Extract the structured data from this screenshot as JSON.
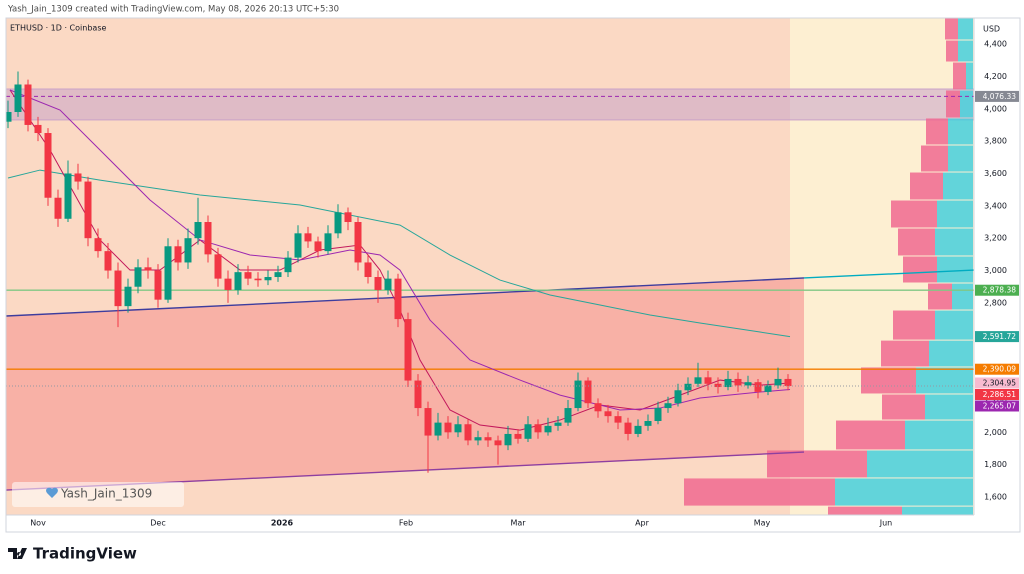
{
  "header": "Yash_Jain_1309 created with TradingView.com, May 08, 2026 20:13 UTC+5:30",
  "watermark": "Yash_Jain_1309",
  "footer_logo": "TradingView",
  "chart_data": {
    "type": "candlestick",
    "title": "ETHUSD · 1D · Coinbase",
    "y_axis_label": "USD",
    "up_color": "#089981",
    "down_color": "#f23645",
    "x": [
      0.5,
      3,
      5.5,
      8,
      10.5,
      13,
      15.5,
      18,
      20.5,
      23,
      25.5,
      28,
      30.5,
      33,
      35.5,
      38,
      40.5,
      43,
      45.5,
      48,
      50.5,
      53,
      55.5,
      58,
      60.5,
      63,
      65.5,
      68,
      70.5,
      73,
      75.5,
      78,
      80.5,
      83,
      85.5,
      88,
      90.5,
      93,
      95.5,
      98,
      100.5,
      103,
      105.5,
      108,
      110.5,
      113,
      115.5,
      118,
      120.5,
      123,
      125.5,
      128,
      130.5,
      133,
      135.5,
      138,
      140.5,
      143,
      145.5,
      148,
      150.5,
      153,
      155.5,
      158,
      160.5,
      163,
      165.5,
      168,
      170.5,
      173,
      175.5,
      178,
      180.5,
      183,
      185.5,
      188,
      190.5,
      193,
      195.5
    ],
    "ohlc": [
      [
        3920,
        4050,
        3880,
        3980
      ],
      [
        3980,
        4230,
        3950,
        4150
      ],
      [
        4150,
        4180,
        3860,
        3900
      ],
      [
        3900,
        3950,
        3800,
        3850
      ],
      [
        3850,
        3880,
        3400,
        3450
      ],
      [
        3450,
        3500,
        3270,
        3320
      ],
      [
        3320,
        3680,
        3300,
        3600
      ],
      [
        3600,
        3660,
        3500,
        3550
      ],
      [
        3550,
        3580,
        3150,
        3200
      ],
      [
        3200,
        3260,
        3080,
        3120
      ],
      [
        3120,
        3170,
        2950,
        3000
      ],
      [
        3000,
        3050,
        2650,
        2780
      ],
      [
        2780,
        2950,
        2740,
        2900
      ],
      [
        2900,
        3070,
        2860,
        3020
      ],
      [
        3020,
        3080,
        2950,
        3000
      ],
      [
        3000,
        3040,
        2770,
        2820
      ],
      [
        2820,
        3200,
        2800,
        3150
      ],
      [
        3150,
        3190,
        3000,
        3050
      ],
      [
        3050,
        3260,
        3010,
        3200
      ],
      [
        3200,
        3450,
        3160,
        3300
      ],
      [
        3300,
        3340,
        3050,
        3100
      ],
      [
        3100,
        3140,
        2900,
        2950
      ],
      [
        2950,
        3000,
        2800,
        2880
      ],
      [
        2880,
        3040,
        2850,
        2990
      ],
      [
        2990,
        3030,
        2910,
        2950
      ],
      [
        2950,
        2990,
        2900,
        2940
      ],
      [
        2940,
        3000,
        2910,
        2960
      ],
      [
        2960,
        3030,
        2930,
        2990
      ],
      [
        2990,
        3120,
        2960,
        3080
      ],
      [
        3080,
        3280,
        3050,
        3230
      ],
      [
        3230,
        3270,
        3140,
        3180
      ],
      [
        3180,
        3210,
        3080,
        3120
      ],
      [
        3120,
        3280,
        3100,
        3230
      ],
      [
        3230,
        3410,
        3200,
        3360
      ],
      [
        3360,
        3390,
        3250,
        3300
      ],
      [
        3300,
        3330,
        3000,
        3050
      ],
      [
        3050,
        3100,
        2920,
        2960
      ],
      [
        2960,
        3000,
        2800,
        2880
      ],
      [
        2880,
        3000,
        2850,
        2950
      ],
      [
        2950,
        2980,
        2650,
        2700
      ],
      [
        2700,
        2740,
        2280,
        2320
      ],
      [
        2320,
        2360,
        2100,
        2150
      ],
      [
        2150,
        2190,
        1750,
        1980
      ],
      [
        1980,
        2120,
        1950,
        2060
      ],
      [
        2060,
        2100,
        1960,
        2000
      ],
      [
        2000,
        2100,
        1970,
        2050
      ],
      [
        2050,
        2080,
        1920,
        1950
      ],
      [
        1950,
        2010,
        1920,
        1970
      ],
      [
        1970,
        2000,
        1910,
        1950
      ],
      [
        1950,
        1980,
        1800,
        1920
      ],
      [
        1920,
        2040,
        1890,
        1990
      ],
      [
        1990,
        2020,
        1930,
        1960
      ],
      [
        1960,
        2100,
        1940,
        2050
      ],
      [
        2050,
        2080,
        1960,
        2000
      ],
      [
        2000,
        2090,
        1980,
        2040
      ],
      [
        2040,
        2100,
        2010,
        2060
      ],
      [
        2060,
        2200,
        2040,
        2150
      ],
      [
        2150,
        2370,
        2130,
        2320
      ],
      [
        2320,
        2340,
        2150,
        2180
      ],
      [
        2180,
        2210,
        2090,
        2130
      ],
      [
        2130,
        2170,
        2060,
        2100
      ],
      [
        2100,
        2130,
        2020,
        2060
      ],
      [
        2060,
        2090,
        1950,
        1990
      ],
      [
        1990,
        2080,
        1970,
        2040
      ],
      [
        2040,
        2110,
        2010,
        2070
      ],
      [
        2070,
        2190,
        2050,
        2150
      ],
      [
        2150,
        2220,
        2120,
        2180
      ],
      [
        2180,
        2300,
        2160,
        2260
      ],
      [
        2260,
        2340,
        2230,
        2300
      ],
      [
        2300,
        2430,
        2280,
        2340
      ],
      [
        2340,
        2380,
        2260,
        2300
      ],
      [
        2300,
        2340,
        2240,
        2280
      ],
      [
        2280,
        2380,
        2260,
        2330
      ],
      [
        2330,
        2370,
        2250,
        2290
      ],
      [
        2290,
        2350,
        2270,
        2310
      ],
      [
        2310,
        2330,
        2210,
        2250
      ],
      [
        2250,
        2320,
        2230,
        2290
      ],
      [
        2290,
        2400,
        2270,
        2330
      ],
      [
        2330,
        2360,
        2260,
        2286.51
      ]
    ],
    "last_close_label": "2,286.51",
    "xlim": [
      0,
      242
    ],
    "xticks": [
      {
        "value": 8,
        "label": "Nov"
      },
      {
        "value": 38,
        "label": "Dec"
      },
      {
        "value": 69,
        "label": "2026"
      },
      {
        "value": 100,
        "label": "Feb"
      },
      {
        "value": 128,
        "label": "Mar"
      },
      {
        "value": 159,
        "label": "Apr"
      },
      {
        "value": 189,
        "label": "May"
      },
      {
        "value": 220,
        "label": "Jun"
      }
    ],
    "ylim": [
      1489,
      4561
    ],
    "yticks": [
      {
        "value": 1600,
        "label": "1,600"
      },
      {
        "value": 1800,
        "label": "1,800"
      },
      {
        "value": 2000,
        "label": "2,000"
      },
      {
        "value": 2200,
        "label": "2,200"
      },
      {
        "value": 2400,
        "label": "2,400"
      },
      {
        "value": 2600,
        "label": "2,600"
      },
      {
        "value": 2800,
        "label": "2,800"
      },
      {
        "value": 3000,
        "label": "3,000"
      },
      {
        "value": 3200,
        "label": "3,200"
      },
      {
        "value": 3400,
        "label": "3,400"
      },
      {
        "value": 3600,
        "label": "3,600"
      },
      {
        "value": 3800,
        "label": "3,800"
      },
      {
        "value": 4000,
        "label": "4,000"
      },
      {
        "value": 4200,
        "label": "4,200"
      },
      {
        "value": 4400,
        "label": "4,400"
      }
    ],
    "moving_averages": [
      {
        "color": "#26a69a",
        "x": [
          0.5,
          8.5,
          23.5,
          48.5,
          73.5,
          98.5,
          111,
          123.5,
          136,
          148.5,
          161,
          173.5,
          188.5,
          196
        ],
        "values": [
          3572,
          3621,
          3559,
          3467,
          3405,
          3281,
          3096,
          2941,
          2849,
          2787,
          2725,
          2676,
          2620,
          2591.72
        ],
        "last_label": "2,591.72",
        "label_color": "#26a69a"
      },
      {
        "color": "#c2185b",
        "x": [
          1,
          11,
          23.5,
          31,
          38.5,
          48.5,
          58.5,
          68.5,
          78.5,
          88.5,
          93.5,
          98.5,
          103.5,
          111,
          118.5,
          128.5,
          138.5,
          148.5,
          158.5,
          168.5,
          178.5,
          188.5,
          196
        ],
        "values": [
          4116,
          3745,
          3189,
          3003,
          3003,
          3189,
          3003,
          3003,
          3127,
          3158,
          3003,
          2756,
          2447,
          2138,
          2045,
          2014,
          2076,
          2169,
          2138,
          2230,
          2323,
          2292,
          2304.95
        ],
        "last_label": "2,304.95",
        "label_color": "#f8bbd0"
      },
      {
        "color": "#9c27b0",
        "x": [
          1,
          13.5,
          23.5,
          36,
          48.5,
          61,
          73.5,
          86,
          93.5,
          98.5,
          106,
          116,
          128.5,
          138.5,
          153.5,
          163.5,
          173.5,
          188.5,
          196
        ],
        "values": [
          4116,
          3992,
          3745,
          3436,
          3189,
          3096,
          3065,
          3127,
          3096,
          3003,
          2694,
          2447,
          2323,
          2230,
          2138,
          2150,
          2212,
          2249,
          2265.07
        ],
        "last_label": "2,265.07",
        "label_color": "#9c27b0"
      }
    ],
    "price_lines": [
      {
        "value": 4076.33,
        "label": "4,076.33",
        "color": "#9c27b0",
        "style": "dashed",
        "label_color": "#868993"
      },
      {
        "value": 2878.38,
        "label": "2,878.38",
        "color": "#81c784",
        "style": "solid",
        "label_color": "#4caf50"
      },
      {
        "value": 2390.09,
        "label": "2,390.09",
        "color": "#f57c00",
        "style": "solid",
        "label_color": "#f57c00"
      }
    ],
    "zone": {
      "from": 3931,
      "to": 4122,
      "color": "#c9a2c8"
    },
    "trend_lines": [
      {
        "x": [
          0,
          199.5
        ],
        "values": [
          2719,
          2954
        ],
        "color": "#3d3d9e"
      },
      {
        "x": [
          199.5,
          242
        ],
        "values": [
          2954,
          3003
        ],
        "color": "#00acc1"
      },
      {
        "x": [
          0,
          199.5
        ],
        "values": [
          1643,
          1878
        ],
        "color": "#8e3fa0"
      }
    ],
    "channel_color": "#f7a39c",
    "volume_profile": {
      "bins": [
        1489,
        1544,
        1718,
        1891,
        2076,
        2237,
        2404,
        2570,
        2756,
        2923,
        3090,
        3263,
        3436,
        3609,
        3776,
        3943,
        4116,
        4289,
        4425,
        4561
      ],
      "down_volume": [
        74,
        151,
        100,
        69,
        43,
        55,
        48,
        42,
        24,
        34,
        37,
        46,
        33,
        27,
        22,
        14,
        13,
        12,
        13
      ],
      "up_volume": [
        71,
        138,
        106,
        68,
        48,
        57,
        44,
        38,
        21,
        36,
        38,
        36,
        30,
        25,
        25,
        13,
        7,
        15,
        15
      ],
      "down_color": "#f06890",
      "up_color": "#46cfdc"
    }
  }
}
